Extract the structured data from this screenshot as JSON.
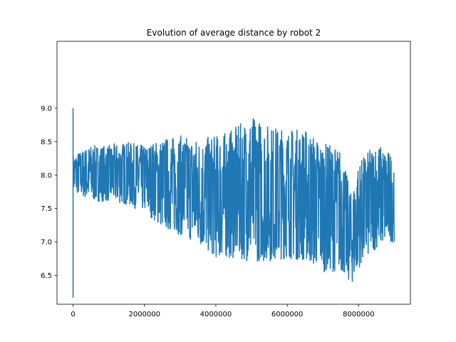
{
  "chart_data": {
    "type": "line",
    "title": "Evolution of average distance by robot 2",
    "xlabel": "",
    "ylabel": "",
    "xlim": [
      -450000,
      9450000
    ],
    "ylim": [
      6.07,
      10.0
    ],
    "x_ticks": [
      0,
      2000000,
      4000000,
      6000000,
      8000000
    ],
    "x_tick_labels": [
      "0",
      "2000000",
      "4000000",
      "6000000",
      "8000000"
    ],
    "y_ticks": [
      6.5,
      7.0,
      7.5,
      8.0,
      8.5,
      9.0
    ],
    "y_tick_labels": [
      "6.5",
      "7.0",
      "7.5",
      "8.0",
      "8.5",
      "9.0"
    ],
    "series": [
      {
        "name": "robot 2",
        "color": "#1f77b4",
        "x_start": 0,
        "x_end": 9000000,
        "initial_spike": {
          "x": 0,
          "max": 9.0,
          "min": 6.17
        },
        "envelope": [
          {
            "x": 0,
            "low": 7.75,
            "high": 8.3
          },
          {
            "x": 500000,
            "low": 7.6,
            "high": 8.45
          },
          {
            "x": 1000000,
            "low": 7.6,
            "high": 8.45
          },
          {
            "x": 1500000,
            "low": 7.55,
            "high": 8.5
          },
          {
            "x": 2000000,
            "low": 7.45,
            "high": 8.45
          },
          {
            "x": 2500000,
            "low": 7.2,
            "high": 8.55
          },
          {
            "x": 3000000,
            "low": 7.1,
            "high": 8.6
          },
          {
            "x": 3500000,
            "low": 6.95,
            "high": 8.55
          },
          {
            "x": 4000000,
            "low": 6.75,
            "high": 8.6
          },
          {
            "x": 4500000,
            "low": 6.75,
            "high": 8.7
          },
          {
            "x": 5000000,
            "low": 6.7,
            "high": 8.9
          },
          {
            "x": 5500000,
            "low": 6.7,
            "high": 8.75
          },
          {
            "x": 6000000,
            "low": 6.75,
            "high": 8.7
          },
          {
            "x": 6500000,
            "low": 6.7,
            "high": 8.7
          },
          {
            "x": 7000000,
            "low": 6.55,
            "high": 8.5
          },
          {
            "x": 7500000,
            "low": 6.55,
            "high": 8.4
          },
          {
            "x": 7800000,
            "low": 6.35,
            "high": 7.7
          },
          {
            "x": 8000000,
            "low": 6.6,
            "high": 8.2
          },
          {
            "x": 8500000,
            "low": 6.9,
            "high": 8.5
          },
          {
            "x": 9000000,
            "low": 7.0,
            "high": 8.3
          }
        ],
        "samples": 1300
      }
    ]
  }
}
